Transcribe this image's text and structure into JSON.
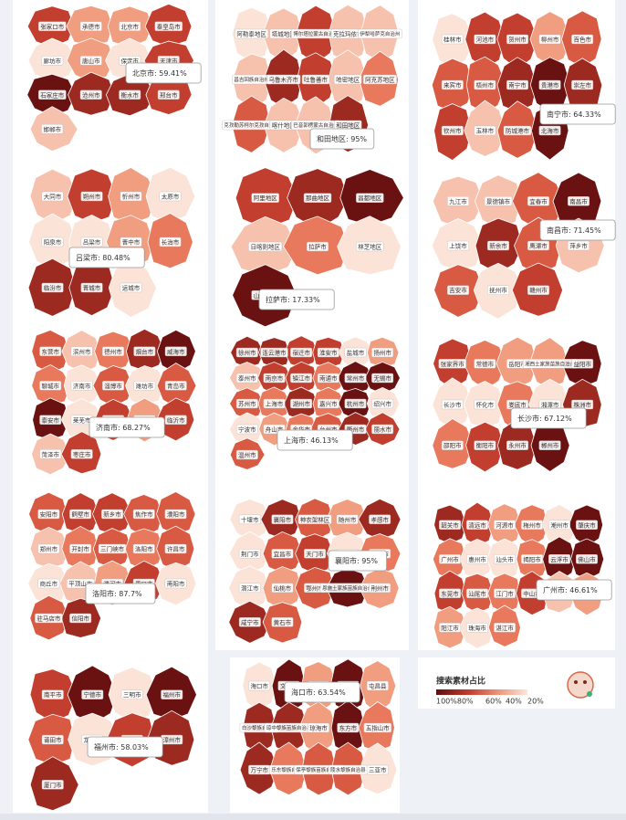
{
  "panels": [
    {
      "tooltip": "北京市: 59.41%",
      "cities": [
        "张家口市",
        "承德市",
        "北京市",
        "秦皇岛市",
        "廊坊市",
        "唐山市",
        "保定市",
        "天津市",
        "石家庄市",
        "沧州市",
        "衡水市",
        "邢台市",
        "邯郸市"
      ]
    },
    {
      "tooltip": "和田地区: 95%",
      "cities": [
        "阿勒泰地区",
        "塔城地区",
        "博尔塔拉蒙古自治州",
        "克拉玛依市",
        "伊犁哈萨克自治州",
        "昌吉回族自治州",
        "乌鲁木齐市",
        "吐鲁番市",
        "哈密地区",
        "阿克苏地区",
        "克孜勒苏柯尔克孜自治州",
        "喀什地区",
        "巴音郭楞蒙古自治州",
        "和田地区"
      ]
    },
    {
      "tooltip": "南宁市: 64.33%",
      "cities": [
        "桂林市",
        "河池市",
        "贺州市",
        "柳州市",
        "百色市",
        "来宾市",
        "梧州市",
        "南宁市",
        "贵港市",
        "崇左市",
        "钦州市",
        "玉林市",
        "防城港市",
        "北海市"
      ]
    },
    {
      "tooltip": "吕梁市: 80.48%",
      "cities": [
        "大同市",
        "朔州市",
        "忻州市",
        "太原市",
        "阳泉市",
        "吕梁市",
        "晋中市",
        "长治市",
        "临汾市",
        "晋城市",
        "运城市"
      ]
    },
    {
      "tooltip": "拉萨市: 17.33%",
      "cities": [
        "阿里地区",
        "那曲地区",
        "昌都地区",
        "日喀则地区",
        "拉萨市",
        "林芝地区",
        "山南地区"
      ]
    },
    {
      "tooltip": "南昌市: 71.45%",
      "cities": [
        "九江市",
        "景德镇市",
        "宜春市",
        "南昌市",
        "上饶市",
        "新余市",
        "鹰潭市",
        "萍乡市",
        "吉安市",
        "抚州市",
        "赣州市"
      ]
    },
    {
      "tooltip": "济南市: 68.27%",
      "cities": [
        "东营市",
        "滨州市",
        "德州市",
        "烟台市",
        "威海市",
        "聊城市",
        "济南市",
        "淄博市",
        "潍坊市",
        "青岛市",
        "泰安市",
        "莱芜市",
        "日照市",
        "济宁市",
        "临沂市",
        "菏泽市",
        "枣庄市"
      ]
    },
    {
      "tooltip": "上海市: 46.13%",
      "cities": [
        "徐州市",
        "连云港市",
        "宿迁市",
        "淮安市",
        "盐城市",
        "扬州市",
        "泰州市",
        "南京市",
        "镇江市",
        "南通市",
        "常州市",
        "无锡市",
        "苏州市",
        "上海市",
        "湖州市",
        "嘉兴市",
        "杭州市",
        "绍兴市",
        "宁波市",
        "舟山市",
        "金华市",
        "台州市",
        "衢州市",
        "丽水市",
        "温州市"
      ]
    },
    {
      "tooltip": "长沙市: 67.12%",
      "cities": [
        "张家界市",
        "常德市",
        "岳阳市",
        "湘西土家族苗族自治州",
        "益阳市",
        "长沙市",
        "怀化市",
        "娄底市",
        "湘潭市",
        "株洲市",
        "邵阳市",
        "衡阳市",
        "永州市",
        "郴州市"
      ]
    },
    {
      "tooltip": "洛阳市: 87.7%",
      "cities": [
        "安阳市",
        "鹤壁市",
        "新乡市",
        "焦作市",
        "濮阳市",
        "郑州市",
        "开封市",
        "三门峡市",
        "洛阳市",
        "许昌市",
        "商丘市",
        "平顶山市",
        "漯河市",
        "周口市",
        "南阳市",
        "驻马店市",
        "信阳市"
      ]
    },
    {
      "tooltip": "襄阳市: 95%",
      "cities": [
        "十堰市",
        "襄阳市",
        "神农架林区",
        "随州市",
        "孝感市",
        "荆门市",
        "宜昌市",
        "天门市",
        "武汉市",
        "黄冈市",
        "潜江市",
        "仙桃市",
        "鄂州市",
        "恩施土家族苗族自治州",
        "荆州市",
        "咸宁市",
        "黄石市"
      ]
    },
    {
      "tooltip": "广州市: 46.61%",
      "cities": [
        "韶关市",
        "清远市",
        "河源市",
        "梅州市",
        "潮州市",
        "肇庆市",
        "广州市",
        "惠州市",
        "汕头市",
        "揭阳市",
        "云浮市",
        "佛山市",
        "东莞市",
        "汕尾市",
        "江门市",
        "中山市",
        "深圳市",
        "茂名市",
        "阳江市",
        "珠海市",
        "湛江市"
      ]
    },
    {
      "tooltip": "福州市: 58.03%",
      "cities": [
        "南平市",
        "宁德市",
        "三明市",
        "福州市",
        "莆田市",
        "龙岩市",
        "泉州市",
        "漳州市",
        "厦门市"
      ]
    },
    {
      "tooltip": "海口市: 63.54%",
      "cities": [
        "海口市",
        "文昌市",
        "儋州市",
        "定安县",
        "屯昌县",
        "白沙黎族自治县",
        "琼中黎族苗族自治县",
        "琼海市",
        "东方市",
        "五指山市",
        "万宁市",
        "乐东黎族自治县",
        "保亭黎族苗族自治县",
        "陵水黎族自治县",
        "三亚市"
      ]
    }
  ],
  "legend": {
    "title": "搜索素材占比",
    "labels": [
      "100%80%",
      "60%",
      "40%",
      "20%"
    ]
  }
}
